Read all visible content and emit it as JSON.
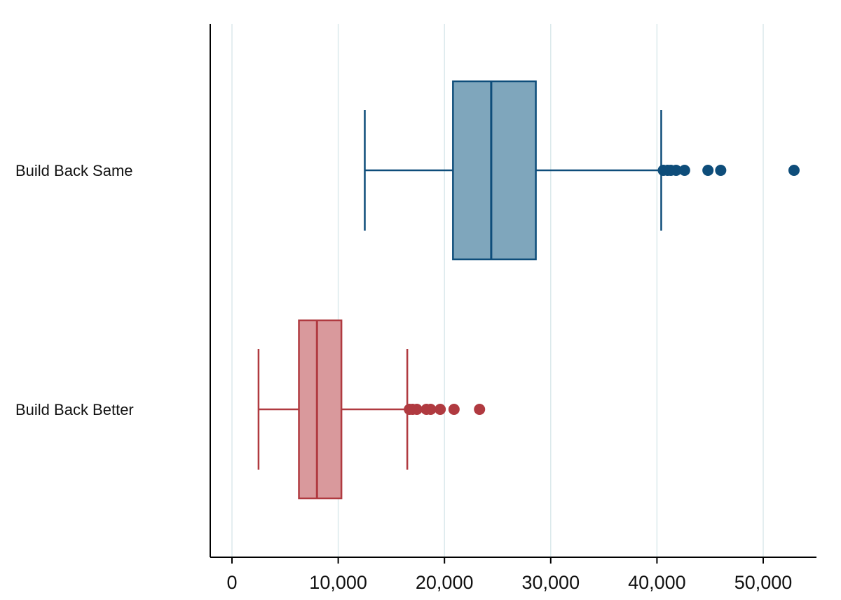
{
  "chart_data": {
    "type": "boxplot",
    "orientation": "horizontal",
    "title": "",
    "xlabel": "",
    "ylabel": "",
    "xlim": [
      -2000,
      55000
    ],
    "xticks": [
      0,
      10000,
      20000,
      30000,
      40000,
      50000
    ],
    "xtick_labels": [
      "0",
      "10,000",
      "20,000",
      "30,000",
      "40,000",
      "50,000"
    ],
    "grid": "vertical",
    "legend": "none",
    "series": [
      {
        "name": "Build Back Same",
        "color": "#0e4d7a",
        "fill": "#7fa6bc",
        "whisker_low": 12500,
        "q1": 20800,
        "median": 24400,
        "q3": 28600,
        "whisker_high": 40400,
        "outliers": [
          40600,
          41000,
          41300,
          41800,
          42600,
          44800,
          46000,
          52900
        ]
      },
      {
        "name": "Build Back Better",
        "color": "#b03a40",
        "fill": "#d9999c",
        "whisker_low": 2500,
        "q1": 6300,
        "median": 8000,
        "q3": 10300,
        "whisker_high": 16500,
        "outliers": [
          16700,
          17000,
          17400,
          18300,
          18700,
          19600,
          20900,
          23300
        ]
      }
    ]
  }
}
